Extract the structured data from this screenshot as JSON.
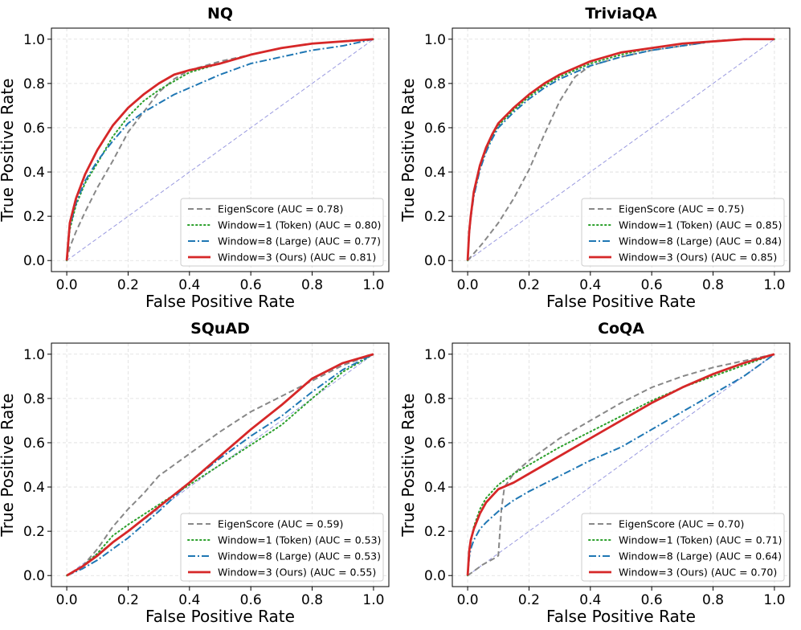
{
  "chart_data": [
    {
      "type": "line",
      "title": "NQ",
      "xlabel": "False Positive Rate",
      "ylabel": "True Positive Rate",
      "xlim": [
        0.0,
        1.0
      ],
      "ylim": [
        0.0,
        1.0
      ],
      "xticks": [
        "0.0",
        "0.2",
        "0.4",
        "0.6",
        "0.8",
        "1.0"
      ],
      "yticks": [
        "0.0",
        "0.2",
        "0.4",
        "0.6",
        "0.8",
        "1.0"
      ],
      "grid": true,
      "legend_position": "bottom-right",
      "diagonal": true,
      "series": [
        {
          "name": "EigenScore (AUC = 0.78)",
          "color": "#888888",
          "style": "dashed",
          "x": [
            0.0,
            0.01,
            0.03,
            0.06,
            0.1,
            0.15,
            0.2,
            0.25,
            0.3,
            0.35,
            0.4,
            0.5,
            0.6,
            0.7,
            0.8,
            0.9,
            1.0
          ],
          "y": [
            0.0,
            0.06,
            0.13,
            0.22,
            0.33,
            0.45,
            0.58,
            0.67,
            0.76,
            0.82,
            0.86,
            0.9,
            0.93,
            0.96,
            0.98,
            0.99,
            1.0
          ]
        },
        {
          "name": "Window=1 (Token) (AUC = 0.80)",
          "color": "#2ca02c",
          "style": "dotted",
          "x": [
            0.0,
            0.01,
            0.03,
            0.06,
            0.1,
            0.15,
            0.2,
            0.25,
            0.3,
            0.35,
            0.4,
            0.5,
            0.6,
            0.7,
            0.8,
            0.9,
            1.0
          ],
          "y": [
            0.0,
            0.14,
            0.25,
            0.35,
            0.44,
            0.56,
            0.65,
            0.72,
            0.77,
            0.81,
            0.85,
            0.89,
            0.93,
            0.96,
            0.98,
            0.99,
            1.0
          ]
        },
        {
          "name": "Window=8 (Large) (AUC = 0.77)",
          "color": "#1f77b4",
          "style": "dashdot",
          "x": [
            0.0,
            0.01,
            0.03,
            0.06,
            0.1,
            0.15,
            0.2,
            0.25,
            0.3,
            0.35,
            0.4,
            0.5,
            0.6,
            0.7,
            0.8,
            0.9,
            1.0
          ],
          "y": [
            0.0,
            0.15,
            0.26,
            0.36,
            0.45,
            0.54,
            0.62,
            0.67,
            0.71,
            0.75,
            0.78,
            0.84,
            0.89,
            0.92,
            0.95,
            0.97,
            1.0
          ]
        },
        {
          "name": "Window=3 (Ours) (AUC = 0.81)",
          "color": "#d62728",
          "style": "solid",
          "x": [
            0.0,
            0.01,
            0.03,
            0.06,
            0.1,
            0.15,
            0.2,
            0.25,
            0.3,
            0.35,
            0.4,
            0.5,
            0.6,
            0.7,
            0.8,
            0.9,
            1.0
          ],
          "y": [
            0.0,
            0.17,
            0.28,
            0.39,
            0.5,
            0.61,
            0.69,
            0.75,
            0.8,
            0.84,
            0.86,
            0.89,
            0.93,
            0.96,
            0.98,
            0.99,
            1.0
          ]
        }
      ]
    },
    {
      "type": "line",
      "title": "TriviaQA",
      "xlabel": "False Positive Rate",
      "ylabel": "True Positive Rate",
      "xlim": [
        0.0,
        1.0
      ],
      "ylim": [
        0.0,
        1.0
      ],
      "xticks": [
        "0.0",
        "0.2",
        "0.4",
        "0.6",
        "0.8",
        "1.0"
      ],
      "yticks": [
        "0.0",
        "0.2",
        "0.4",
        "0.6",
        "0.8",
        "1.0"
      ],
      "grid": true,
      "legend_position": "bottom-right",
      "diagonal": true,
      "series": [
        {
          "name": "EigenScore (AUC = 0.75)",
          "color": "#888888",
          "style": "dashed",
          "x": [
            0.0,
            0.05,
            0.1,
            0.15,
            0.2,
            0.25,
            0.3,
            0.35,
            0.4,
            0.5,
            0.6,
            0.7,
            0.8,
            0.9,
            1.0
          ],
          "y": [
            0.0,
            0.08,
            0.17,
            0.28,
            0.41,
            0.57,
            0.72,
            0.83,
            0.88,
            0.92,
            0.95,
            0.97,
            0.99,
            1.0,
            1.0
          ]
        },
        {
          "name": "Window=1 (Token) (AUC = 0.85)",
          "color": "#2ca02c",
          "style": "dotted",
          "x": [
            0.0,
            0.005,
            0.01,
            0.02,
            0.04,
            0.06,
            0.08,
            0.1,
            0.15,
            0.2,
            0.25,
            0.3,
            0.4,
            0.5,
            0.6,
            0.7,
            0.8,
            0.9,
            1.0
          ],
          "y": [
            0.0,
            0.12,
            0.2,
            0.3,
            0.42,
            0.5,
            0.56,
            0.61,
            0.68,
            0.74,
            0.79,
            0.83,
            0.89,
            0.93,
            0.96,
            0.98,
            0.99,
            1.0,
            1.0
          ]
        },
        {
          "name": "Window=8 (Large) (AUC = 0.84)",
          "color": "#1f77b4",
          "style": "dashdot",
          "x": [
            0.0,
            0.005,
            0.01,
            0.02,
            0.04,
            0.06,
            0.08,
            0.1,
            0.15,
            0.2,
            0.25,
            0.3,
            0.4,
            0.5,
            0.6,
            0.7,
            0.8,
            0.9,
            1.0
          ],
          "y": [
            0.0,
            0.12,
            0.19,
            0.29,
            0.41,
            0.49,
            0.55,
            0.6,
            0.67,
            0.73,
            0.78,
            0.82,
            0.88,
            0.92,
            0.95,
            0.97,
            0.99,
            1.0,
            1.0
          ]
        },
        {
          "name": "Window=3 (Ours) (AUC = 0.85)",
          "color": "#d62728",
          "style": "solid",
          "x": [
            0.0,
            0.005,
            0.01,
            0.02,
            0.04,
            0.06,
            0.08,
            0.1,
            0.15,
            0.2,
            0.25,
            0.3,
            0.4,
            0.5,
            0.6,
            0.7,
            0.8,
            0.9,
            1.0
          ],
          "y": [
            0.0,
            0.13,
            0.2,
            0.31,
            0.43,
            0.51,
            0.57,
            0.62,
            0.69,
            0.75,
            0.8,
            0.84,
            0.9,
            0.94,
            0.96,
            0.98,
            0.99,
            1.0,
            1.0
          ]
        }
      ]
    },
    {
      "type": "line",
      "title": "SQuAD",
      "xlabel": "False Positive Rate",
      "ylabel": "True Positive Rate",
      "xlim": [
        0.0,
        1.0
      ],
      "ylim": [
        0.0,
        1.0
      ],
      "xticks": [
        "0.0",
        "0.2",
        "0.4",
        "0.6",
        "0.8",
        "1.0"
      ],
      "yticks": [
        "0.0",
        "0.2",
        "0.4",
        "0.6",
        "0.8",
        "1.0"
      ],
      "grid": true,
      "legend_position": "bottom-right",
      "diagonal": true,
      "series": [
        {
          "name": "EigenScore (AUC = 0.59)",
          "color": "#888888",
          "style": "dashed",
          "x": [
            0.0,
            0.05,
            0.1,
            0.15,
            0.2,
            0.25,
            0.3,
            0.35,
            0.4,
            0.5,
            0.6,
            0.7,
            0.8,
            0.9,
            1.0
          ],
          "y": [
            0.0,
            0.04,
            0.12,
            0.22,
            0.3,
            0.37,
            0.45,
            0.5,
            0.55,
            0.65,
            0.74,
            0.81,
            0.88,
            0.95,
            1.0
          ]
        },
        {
          "name": "Window=1 (Token) (AUC = 0.53)",
          "color": "#2ca02c",
          "style": "dotted",
          "x": [
            0.0,
            0.05,
            0.1,
            0.15,
            0.2,
            0.3,
            0.4,
            0.5,
            0.6,
            0.7,
            0.8,
            0.9,
            1.0
          ],
          "y": [
            0.0,
            0.04,
            0.1,
            0.18,
            0.23,
            0.32,
            0.41,
            0.5,
            0.59,
            0.68,
            0.8,
            0.92,
            1.0
          ]
        },
        {
          "name": "Window=8 (Large) (AUC = 0.53)",
          "color": "#1f77b4",
          "style": "dashdot",
          "x": [
            0.0,
            0.05,
            0.1,
            0.15,
            0.2,
            0.3,
            0.4,
            0.5,
            0.6,
            0.7,
            0.8,
            0.9,
            1.0
          ],
          "y": [
            0.0,
            0.03,
            0.07,
            0.12,
            0.17,
            0.29,
            0.42,
            0.53,
            0.63,
            0.72,
            0.83,
            0.93,
            1.0
          ]
        },
        {
          "name": "Window=3 (Ours) (AUC = 0.55)",
          "color": "#d62728",
          "style": "solid",
          "x": [
            0.0,
            0.05,
            0.1,
            0.15,
            0.2,
            0.3,
            0.4,
            0.5,
            0.6,
            0.7,
            0.8,
            0.9,
            1.0
          ],
          "y": [
            0.0,
            0.04,
            0.09,
            0.15,
            0.2,
            0.31,
            0.42,
            0.54,
            0.66,
            0.77,
            0.89,
            0.96,
            1.0
          ]
        }
      ]
    },
    {
      "type": "line",
      "title": "CoQA",
      "xlabel": "False Positive Rate",
      "ylabel": "True Positive Rate",
      "xlim": [
        0.0,
        1.0
      ],
      "ylim": [
        0.0,
        1.0
      ],
      "xticks": [
        "0.0",
        "0.2",
        "0.4",
        "0.6",
        "0.8",
        "1.0"
      ],
      "yticks": [
        "0.0",
        "0.2",
        "0.4",
        "0.6",
        "0.8",
        "1.0"
      ],
      "grid": true,
      "legend_position": "bottom-right",
      "diagonal": true,
      "series": [
        {
          "name": "EigenScore (AUC = 0.70)",
          "color": "#888888",
          "style": "dashed",
          "x": [
            0.0,
            0.05,
            0.09,
            0.1,
            0.11,
            0.12,
            0.15,
            0.2,
            0.3,
            0.4,
            0.5,
            0.6,
            0.7,
            0.8,
            0.9,
            1.0
          ],
          "y": [
            0.0,
            0.05,
            0.08,
            0.09,
            0.3,
            0.4,
            0.46,
            0.52,
            0.62,
            0.7,
            0.78,
            0.85,
            0.9,
            0.94,
            0.97,
            1.0
          ]
        },
        {
          "name": "Window=1 (Token) (AUC = 0.71)",
          "color": "#2ca02c",
          "style": "dotted",
          "x": [
            0.0,
            0.005,
            0.01,
            0.02,
            0.04,
            0.06,
            0.1,
            0.15,
            0.2,
            0.3,
            0.4,
            0.5,
            0.6,
            0.7,
            0.8,
            0.9,
            1.0
          ],
          "y": [
            0.0,
            0.1,
            0.15,
            0.22,
            0.3,
            0.35,
            0.41,
            0.46,
            0.5,
            0.58,
            0.65,
            0.72,
            0.79,
            0.85,
            0.9,
            0.95,
            1.0
          ]
        },
        {
          "name": "Window=8 (Large) (AUC = 0.64)",
          "color": "#1f77b4",
          "style": "dashdot",
          "x": [
            0.0,
            0.005,
            0.01,
            0.02,
            0.04,
            0.06,
            0.1,
            0.15,
            0.2,
            0.3,
            0.4,
            0.5,
            0.6,
            0.7,
            0.8,
            0.9,
            1.0
          ],
          "y": [
            0.0,
            0.08,
            0.12,
            0.16,
            0.21,
            0.24,
            0.29,
            0.34,
            0.38,
            0.45,
            0.52,
            0.58,
            0.66,
            0.74,
            0.82,
            0.9,
            1.0
          ]
        },
        {
          "name": "Window=3 (Ours) (AUC = 0.70)",
          "color": "#d62728",
          "style": "solid",
          "x": [
            0.0,
            0.005,
            0.01,
            0.02,
            0.04,
            0.06,
            0.1,
            0.15,
            0.2,
            0.3,
            0.4,
            0.5,
            0.6,
            0.7,
            0.8,
            0.9,
            1.0
          ],
          "y": [
            0.0,
            0.11,
            0.16,
            0.21,
            0.28,
            0.33,
            0.39,
            0.42,
            0.46,
            0.54,
            0.62,
            0.7,
            0.78,
            0.85,
            0.91,
            0.96,
            1.0
          ]
        }
      ]
    }
  ]
}
